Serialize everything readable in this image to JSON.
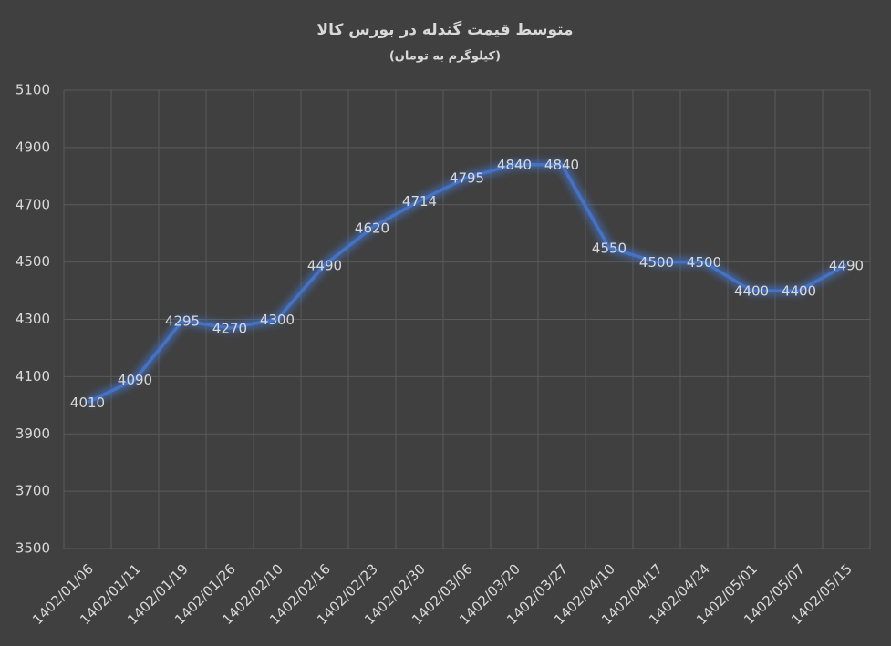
{
  "chart_data": {
    "type": "line",
    "title": "متوسط قیمت گندله در بورس کالا",
    "subtitle": "(کیلوگرم به تومان)",
    "categories": [
      "1402/01/06",
      "1402/01/11",
      "1402/01/19",
      "1402/01/26",
      "1402/02/10",
      "1402/02/16",
      "1402/02/23",
      "1402/02/30",
      "1402/03/06",
      "1402/03/20",
      "1402/03/27",
      "1402/04/10",
      "1402/04/17",
      "1402/04/24",
      "1402/05/01",
      "1402/05/07",
      "1402/05/15"
    ],
    "values": [
      4010,
      4090,
      4295,
      4270,
      4300,
      4490,
      4620,
      4714,
      4795,
      4840,
      4840,
      4550,
      4500,
      4500,
      4400,
      4400,
      4490
    ],
    "color": "#4472c4",
    "ylim": [
      3500,
      5100
    ],
    "yticks": [
      3500,
      3700,
      3900,
      4100,
      4300,
      4500,
      4700,
      4900,
      5100
    ],
    "grid": true
  }
}
